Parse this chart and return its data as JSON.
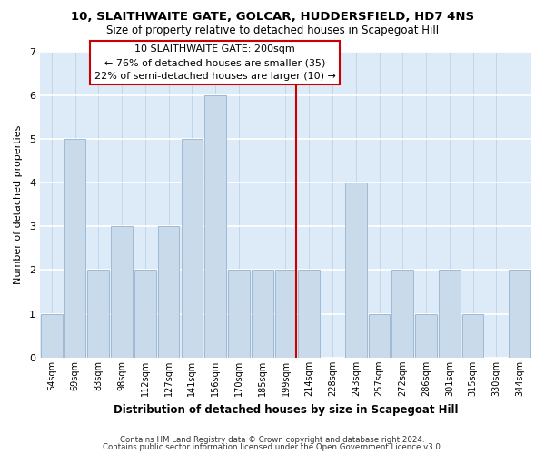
{
  "title1": "10, SLAITHWAITE GATE, GOLCAR, HUDDERSFIELD, HD7 4NS",
  "title2": "Size of property relative to detached houses in Scapegoat Hill",
  "xlabel": "Distribution of detached houses by size in Scapegoat Hill",
  "ylabel": "Number of detached properties",
  "categories": [
    "54sqm",
    "69sqm",
    "83sqm",
    "98sqm",
    "112sqm",
    "127sqm",
    "141sqm",
    "156sqm",
    "170sqm",
    "185sqm",
    "199sqm",
    "214sqm",
    "228sqm",
    "243sqm",
    "257sqm",
    "272sqm",
    "286sqm",
    "301sqm",
    "315sqm",
    "330sqm",
    "344sqm"
  ],
  "values": [
    1,
    5,
    2,
    3,
    2,
    3,
    5,
    6,
    2,
    2,
    2,
    2,
    0,
    4,
    1,
    2,
    1,
    2,
    1,
    0,
    2
  ],
  "highlight_index": 10,
  "bar_color": "#c9daea",
  "bar_edge_color": "#a0bad4",
  "highlight_line_color": "#cc0000",
  "ylim": [
    0,
    7
  ],
  "yticks": [
    0,
    1,
    2,
    3,
    4,
    5,
    6,
    7
  ],
  "annotation_title": "10 SLAITHWAITE GATE: 200sqm",
  "annotation_line1": "← 76% of detached houses are smaller (35)",
  "annotation_line2": "22% of semi-detached houses are larger (10) →",
  "annotation_box_edge": "#cc0000",
  "footer1": "Contains HM Land Registry data © Crown copyright and database right 2024.",
  "footer2": "Contains public sector information licensed under the Open Government Licence v3.0.",
  "background_color": "#ffffff",
  "plot_bg_color": "#ddeaf7",
  "grid_color": "#c5d5e8"
}
